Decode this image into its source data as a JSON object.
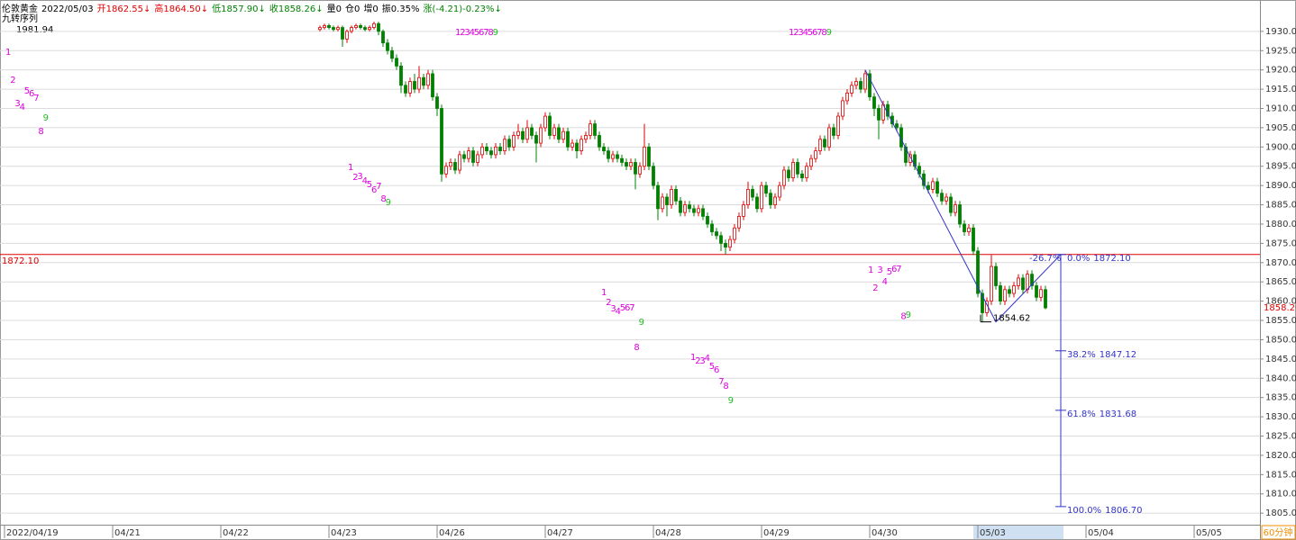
{
  "chart_data": {
    "type": "candlestick",
    "header": [
      {
        "text": "伦敦黄金",
        "color": "#000000"
      },
      {
        "text": "2022/05/03",
        "color": "#000000"
      },
      {
        "text": "开1862.55↓",
        "color": "#e00000"
      },
      {
        "text": "高1864.50↓",
        "color": "#e00000"
      },
      {
        "text": "低1857.90↓",
        "color": "#008000"
      },
      {
        "text": "收1858.26↓",
        "color": "#008000"
      },
      {
        "text": "量0",
        "color": "#000000"
      },
      {
        "text": "仓0",
        "color": "#000000"
      },
      {
        "text": "增0",
        "color": "#000000"
      },
      {
        "text": "振0.35%",
        "color": "#000000"
      },
      {
        "text": "涨(-4.21)-0.23%↓",
        "color": "#008000"
      }
    ],
    "indicator": "九转序列",
    "max_label": "1981.94",
    "period": "60分钟",
    "up_color": "#e00000",
    "down_color": "#008000",
    "ylim": [
      1802,
      1933
    ],
    "yticks": [
      {
        "value": 1805,
        "label": "1805.00"
      },
      {
        "value": 1810,
        "label": "1810.00"
      },
      {
        "value": 1815,
        "label": "1815.00"
      },
      {
        "value": 1820,
        "label": "1820.00"
      },
      {
        "value": 1825,
        "label": "1825.00"
      },
      {
        "value": 1830,
        "label": "1830.00"
      },
      {
        "value": 1835,
        "label": "1835.00"
      },
      {
        "value": 1840,
        "label": "1840.00"
      },
      {
        "value": 1845,
        "label": "1845.00"
      },
      {
        "value": 1850,
        "label": "1850.00"
      },
      {
        "value": 1855,
        "label": "1855.00"
      },
      {
        "value": 1860,
        "label": "1860.00"
      },
      {
        "value": 1865,
        "label": "1865.00"
      },
      {
        "value": 1870,
        "label": "1870.00"
      },
      {
        "value": 1875,
        "label": "1875.00"
      },
      {
        "value": 1880,
        "label": "1880.00"
      },
      {
        "value": 1885,
        "label": "1885.00"
      },
      {
        "value": 1890,
        "label": "1890.00"
      },
      {
        "value": 1895,
        "label": "1895.00"
      },
      {
        "value": 1900,
        "label": "1900.00"
      },
      {
        "value": 1905,
        "label": "1905.00"
      },
      {
        "value": 1910,
        "label": "1910.00"
      },
      {
        "value": 1915,
        "label": "1915.00"
      },
      {
        "value": 1920,
        "label": "1920.00"
      },
      {
        "value": 1925,
        "label": "1925.00"
      },
      {
        "value": 1930,
        "label": "1930.00"
      }
    ],
    "x_labels": [
      "2022/04/19",
      "04/21",
      "04/22",
      "04/23",
      "04/26",
      "04/27",
      "04/28",
      "04/29",
      "04/30",
      "05/03",
      "05/04",
      "05/05"
    ],
    "grid": true,
    "ref_line": {
      "value": 1872.1,
      "label": "1872.10",
      "color": "#e00000"
    },
    "trend_prices": [
      1920,
      1854.62,
      1872.1
    ],
    "trend_color": "#3333cc",
    "low_label": {
      "value": 1854.62,
      "label": "1854.62"
    },
    "range_pct": "-26.7%",
    "fib_levels": [
      {
        "pct": "0.0%",
        "value": 1872.1,
        "value_label": "1872.10"
      },
      {
        "pct": "38.2%",
        "value": 1847.12,
        "value_label": "1847.12"
      },
      {
        "pct": "61.8%",
        "value": 1831.68,
        "value_label": "1831.68"
      },
      {
        "pct": "100.0%",
        "value": 1806.7,
        "value_label": "1806.70"
      }
    ],
    "td_sequence": [
      {
        "texts": [
          "1",
          "2",
          "3",
          "4",
          "5",
          "6",
          "7",
          "8",
          "9"
        ],
        "prices": [
          1924.6,
          1917.4,
          1911.3,
          1910.3,
          1914.6,
          1913.9,
          1912.7,
          1904,
          1907.5
        ]
      },
      {
        "texts": [
          "1",
          "2",
          "3",
          "4",
          "5",
          "6",
          "7",
          "8",
          "9"
        ],
        "prices": [
          1894.7,
          1892.1,
          1892.4,
          1891.2,
          1890.3,
          1888.9,
          1889.8,
          1886.5,
          1885.6
        ]
      },
      {
        "texts": [
          "1",
          "2",
          "3",
          "4",
          "5",
          "6",
          "7",
          "8",
          "9"
        ],
        "prices": [
          1929.7,
          1929.7,
          1929.7,
          1929.7,
          1929.7,
          1929.7,
          1929.7,
          1929.7,
          1929.7
        ]
      },
      {
        "texts": [
          "1",
          "2",
          "3",
          "4",
          "5",
          "6",
          "7",
          "8",
          "9"
        ],
        "prices": [
          1929.7,
          1929.7,
          1929.7,
          1929.7,
          1929.7,
          1929.7,
          1929.7,
          1929.7,
          1929.7
        ]
      },
      {
        "texts": [
          "1",
          "2",
          "3",
          "4",
          "5",
          "6",
          "7",
          "8",
          "9"
        ],
        "prices": [
          1862.2,
          1859.7,
          1858,
          1857.3,
          1858.3,
          1858.3,
          1858.3,
          1848,
          1854.5
        ]
      },
      {
        "texts": [
          "1",
          "2",
          "3",
          "4",
          "5",
          "6",
          "7",
          "8",
          "9"
        ],
        "prices": [
          1845.4,
          1844.5,
          1844.5,
          1845.2,
          1843.1,
          1842.2,
          1839.1,
          1838,
          1834.2
        ]
      },
      {
        "texts": [
          "1",
          "2",
          "3",
          "4",
          "5",
          "6",
          "7",
          "8",
          "9"
        ],
        "prices": [
          1868.1,
          1863.4,
          1868.1,
          1865,
          1867.6,
          1868.3,
          1868.3,
          1856,
          1856.4
        ]
      }
    ],
    "candles": [
      [
        1930.5,
        1931.5,
        1930,
        1931
      ],
      [
        1931,
        1932,
        1930.5,
        1931.5
      ],
      [
        1931.5,
        1932,
        1930.5,
        1931
      ],
      [
        1931,
        1931.5,
        1930,
        1930.5
      ],
      [
        1930.5,
        1931.5,
        1930,
        1931
      ],
      [
        1931,
        1931.5,
        1926,
        1928
      ],
      [
        1928,
        1930.5,
        1927,
        1930
      ],
      [
        1930,
        1931.5,
        1929.5,
        1931
      ],
      [
        1931,
        1932,
        1930.5,
        1931.5
      ],
      [
        1931.5,
        1932,
        1930.5,
        1931
      ],
      [
        1931,
        1931.5,
        1930,
        1930.5
      ],
      [
        1930.5,
        1931.5,
        1930,
        1931
      ],
      [
        1931,
        1932.5,
        1930.5,
        1932
      ],
      [
        1932,
        1932.5,
        1929,
        1930
      ],
      [
        1930,
        1930.5,
        1926,
        1927
      ],
      [
        1927,
        1928,
        1924,
        1925
      ],
      [
        1925,
        1926,
        1922,
        1923
      ],
      [
        1923,
        1924,
        1920,
        1921
      ],
      [
        1921,
        1922,
        1914,
        1916
      ],
      [
        1916,
        1917,
        1913,
        1914
      ],
      [
        1914,
        1918,
        1913,
        1917
      ],
      [
        1917,
        1919,
        1914,
        1915
      ],
      [
        1915,
        1921,
        1914,
        1918
      ],
      [
        1918,
        1919,
        1915,
        1916
      ],
      [
        1916,
        1920,
        1915,
        1919
      ],
      [
        1919,
        1920,
        1912,
        1913
      ],
      [
        1913,
        1914,
        1908,
        1910
      ],
      [
        1910,
        1911,
        1891,
        1893
      ],
      [
        1893,
        1896,
        1892,
        1895
      ],
      [
        1895,
        1897,
        1894,
        1896
      ],
      [
        1896,
        1897,
        1893,
        1894
      ],
      [
        1894,
        1899,
        1893,
        1898
      ],
      [
        1898,
        1899,
        1896,
        1897
      ],
      [
        1897,
        1900,
        1896,
        1899
      ],
      [
        1899,
        1900,
        1895,
        1896
      ],
      [
        1896,
        1899,
        1895,
        1898
      ],
      [
        1898,
        1901,
        1897,
        1900
      ],
      [
        1900,
        1901,
        1898,
        1899
      ],
      [
        1899,
        1900,
        1897,
        1898
      ],
      [
        1898,
        1901,
        1897,
        1900
      ],
      [
        1900,
        1901,
        1898,
        1899
      ],
      [
        1899,
        1903,
        1898,
        1902
      ],
      [
        1902,
        1903,
        1899,
        1900
      ],
      [
        1900,
        1904,
        1899,
        1903
      ],
      [
        1903,
        1906,
        1902,
        1904
      ],
      [
        1904,
        1905,
        1901,
        1902
      ],
      [
        1902,
        1907,
        1901,
        1905
      ],
      [
        1905,
        1906,
        1902,
        1903
      ],
      [
        1903,
        1904,
        1896,
        1901
      ],
      [
        1901,
        1906,
        1900,
        1905
      ],
      [
        1905,
        1909,
        1904,
        1908
      ],
      [
        1908,
        1909,
        1902,
        1903
      ],
      [
        1903,
        1906,
        1902,
        1905
      ],
      [
        1905,
        1906,
        1901,
        1902
      ],
      [
        1902,
        1905,
        1901,
        1904
      ],
      [
        1904,
        1905,
        1899,
        1900
      ],
      [
        1900,
        1902,
        1899,
        1901
      ],
      [
        1901,
        1902,
        1897,
        1899
      ],
      [
        1899,
        1903,
        1898,
        1902
      ],
      [
        1902,
        1904,
        1901,
        1903
      ],
      [
        1903,
        1907,
        1902,
        1906
      ],
      [
        1906,
        1907,
        1902,
        1903
      ],
      [
        1903,
        1904,
        1899,
        1900
      ],
      [
        1900,
        1901,
        1898,
        1899
      ],
      [
        1899,
        1900,
        1896,
        1897
      ],
      [
        1897,
        1899,
        1896,
        1898
      ],
      [
        1898,
        1899,
        1896,
        1897
      ],
      [
        1897,
        1898,
        1895,
        1896
      ],
      [
        1896,
        1897,
        1894,
        1895
      ],
      [
        1895,
        1897,
        1894,
        1896
      ],
      [
        1896,
        1897,
        1889,
        1893
      ],
      [
        1893,
        1896,
        1892,
        1895
      ],
      [
        1895,
        1906,
        1894,
        1900
      ],
      [
        1900,
        1901,
        1894,
        1895
      ],
      [
        1895,
        1896,
        1889,
        1890
      ],
      [
        1890,
        1891,
        1881,
        1884
      ],
      [
        1884,
        1888,
        1883,
        1887
      ],
      [
        1887,
        1888,
        1882,
        1885
      ],
      [
        1885,
        1890,
        1884,
        1889
      ],
      [
        1889,
        1890,
        1885,
        1886
      ],
      [
        1886,
        1887,
        1882,
        1883
      ],
      [
        1883,
        1886,
        1882,
        1885
      ],
      [
        1885,
        1886,
        1883,
        1884
      ],
      [
        1884,
        1885,
        1882,
        1883
      ],
      [
        1883,
        1885,
        1882,
        1884
      ],
      [
        1884,
        1885,
        1881,
        1882
      ],
      [
        1882,
        1883,
        1879,
        1880
      ],
      [
        1880,
        1881,
        1877,
        1878
      ],
      [
        1878,
        1879,
        1876,
        1877
      ],
      [
        1877,
        1878,
        1873,
        1875
      ],
      [
        1875,
        1876,
        1872.1,
        1874
      ],
      [
        1874,
        1877,
        1873,
        1876
      ],
      [
        1876,
        1880,
        1875,
        1879
      ],
      [
        1879,
        1883,
        1878,
        1882
      ],
      [
        1882,
        1886,
        1881,
        1885
      ],
      [
        1885,
        1891,
        1884,
        1889
      ],
      [
        1889,
        1890,
        1886,
        1887
      ],
      [
        1887,
        1888,
        1883,
        1884
      ],
      [
        1884,
        1891,
        1883,
        1890
      ],
      [
        1890,
        1891,
        1887,
        1888
      ],
      [
        1888,
        1889,
        1884,
        1885
      ],
      [
        1885,
        1888,
        1884,
        1887
      ],
      [
        1887,
        1891,
        1886,
        1890
      ],
      [
        1890,
        1895,
        1889,
        1894
      ],
      [
        1894,
        1895,
        1891,
        1892
      ],
      [
        1892,
        1897,
        1891,
        1896
      ],
      [
        1896,
        1897,
        1892,
        1893
      ],
      [
        1893,
        1894,
        1891,
        1892
      ],
      [
        1892,
        1896,
        1891,
        1895
      ],
      [
        1895,
        1898,
        1894,
        1897
      ],
      [
        1897,
        1900,
        1896,
        1899
      ],
      [
        1899,
        1903,
        1898,
        1902
      ],
      [
        1902,
        1903,
        1899,
        1900
      ],
      [
        1900,
        1906,
        1899,
        1905
      ],
      [
        1905,
        1906,
        1902,
        1903
      ],
      [
        1903,
        1909,
        1902,
        1908
      ],
      [
        1908,
        1913,
        1907,
        1912
      ],
      [
        1912,
        1915,
        1911,
        1914
      ],
      [
        1914,
        1917,
        1913,
        1916
      ],
      [
        1916,
        1918,
        1915,
        1917
      ],
      [
        1917,
        1918,
        1914,
        1915
      ],
      [
        1915,
        1920,
        1914,
        1919
      ],
      [
        1919,
        1920,
        1912,
        1913
      ],
      [
        1913,
        1914,
        1908,
        1910
      ],
      [
        1910,
        1911,
        1902,
        1907
      ],
      [
        1907,
        1912,
        1906,
        1911
      ],
      [
        1911,
        1912,
        1907,
        1908
      ],
      [
        1908,
        1909,
        1905,
        1906
      ],
      [
        1906,
        1907,
        1904,
        1905
      ],
      [
        1905,
        1906,
        1899,
        1900
      ],
      [
        1900,
        1901,
        1895,
        1896
      ],
      [
        1896,
        1899,
        1895,
        1898
      ],
      [
        1898,
        1899,
        1894,
        1895
      ],
      [
        1895,
        1896,
        1892,
        1893
      ],
      [
        1893,
        1894,
        1889,
        1890
      ],
      [
        1890,
        1891,
        1888,
        1889
      ],
      [
        1889,
        1892,
        1888,
        1891
      ],
      [
        1891,
        1892,
        1887,
        1888
      ],
      [
        1888,
        1889,
        1885,
        1886
      ],
      [
        1886,
        1888,
        1885,
        1887
      ],
      [
        1887,
        1888,
        1882,
        1883
      ],
      [
        1883,
        1886,
        1882,
        1885
      ],
      [
        1885,
        1886,
        1879,
        1880
      ],
      [
        1880,
        1881,
        1877,
        1878
      ],
      [
        1878,
        1880,
        1877,
        1879
      ],
      [
        1879,
        1880,
        1872,
        1873
      ],
      [
        1873,
        1874,
        1861,
        1862
      ],
      [
        1862,
        1863,
        1854.62,
        1857
      ],
      [
        1857,
        1861,
        1856,
        1860
      ],
      [
        1860,
        1872,
        1859,
        1869
      ],
      [
        1869,
        1870,
        1863,
        1864
      ],
      [
        1864,
        1865,
        1859,
        1860
      ],
      [
        1860,
        1864,
        1859,
        1863
      ],
      [
        1863,
        1864,
        1861,
        1862
      ],
      [
        1862,
        1865,
        1861,
        1864
      ],
      [
        1864,
        1867,
        1863,
        1866
      ],
      [
        1866,
        1867,
        1862,
        1863
      ],
      [
        1863,
        1868,
        1862,
        1867
      ],
      [
        1867,
        1868,
        1863,
        1864
      ],
      [
        1864,
        1865,
        1860,
        1861
      ],
      [
        1861,
        1864,
        1860,
        1863
      ],
      [
        1863,
        1864,
        1857.9,
        1858.26
      ]
    ]
  }
}
